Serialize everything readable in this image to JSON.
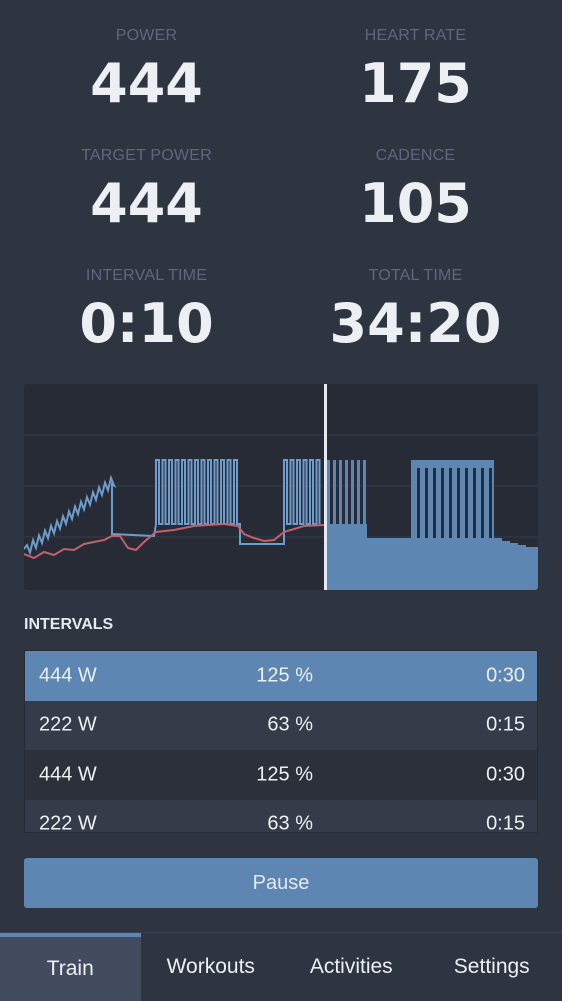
{
  "metrics": [
    {
      "label": "POWER",
      "value": "444"
    },
    {
      "label": "HEART RATE",
      "value": "175"
    },
    {
      "label": "TARGET POWER",
      "value": "444"
    },
    {
      "label": "CADENCE",
      "value": "105"
    },
    {
      "label": "INTERVAL TIME",
      "value": "0:10"
    },
    {
      "label": "TOTAL TIME",
      "value": "34:20"
    }
  ],
  "intervals": {
    "title": "INTERVALS",
    "rows": [
      {
        "watts": "444 W",
        "pct": "125 %",
        "dur": "0:30"
      },
      {
        "watts": "222 W",
        "pct": "63 %",
        "dur": "0:15"
      },
      {
        "watts": "444 W",
        "pct": "125 %",
        "dur": "0:30"
      },
      {
        "watts": "222 W",
        "pct": "63 %",
        "dur": "0:15"
      }
    ]
  },
  "pause_label": "Pause",
  "tabs": [
    "Train",
    "Workouts",
    "Activities",
    "Settings"
  ],
  "colors": {
    "accent": "#5e86b3",
    "heart_rate_line": "#c2606b",
    "power_line": "#6e9ccc",
    "background": "#2e3440"
  }
}
